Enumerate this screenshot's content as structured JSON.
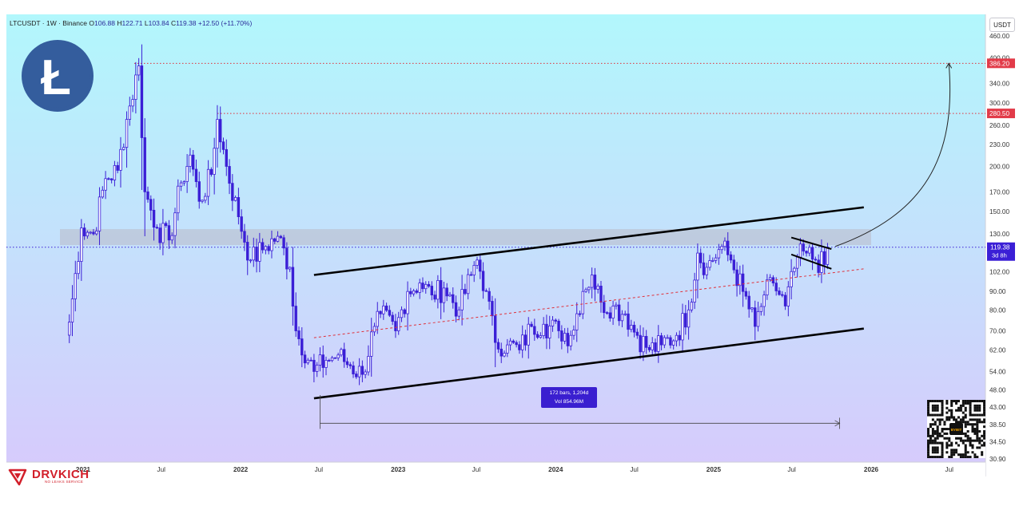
{
  "legend": {
    "symbol": "LTCUSDT · 1W · Binance",
    "open_label": "O",
    "open": "106.88",
    "high_label": "H",
    "high": "122.71",
    "low_label": "L",
    "low": "103.84",
    "close_label": "C",
    "close": "119.38",
    "change": "+12.50 (+11.70%)"
  },
  "logo": {
    "glyph": "Ł",
    "name": "litecoin-logo"
  },
  "price_axis": {
    "unit": "USDT",
    "ticks": [
      "460.00",
      "400.00",
      "340.00",
      "300.00",
      "260.00",
      "230.00",
      "200.00",
      "170.00",
      "150.00",
      "130.00",
      "102.00",
      "90.00",
      "80.00",
      "70.00",
      "62.00",
      "54.00",
      "48.00",
      "43.00",
      "38.50",
      "34.50",
      "30.90"
    ]
  },
  "price_labels": {
    "target_1": "386.20",
    "target_2": "280.50",
    "current_price": "119.38",
    "countdown": "3d 8h"
  },
  "time_axis": {
    "labels": [
      "2021",
      "Jul",
      "2022",
      "Jul",
      "2023",
      "Jul",
      "2024",
      "Jul",
      "2025",
      "Jul",
      "2026",
      "Jul"
    ]
  },
  "measure": {
    "bars": "172 bars, 1,204d",
    "vol": "Vol 854.96M"
  },
  "watermark": {
    "name": "DRVKICH",
    "tagline": "NO LEAKS SERVICE"
  },
  "qr": {
    "center_text": "BYBIT"
  },
  "colors": {
    "background_top": "#b2f7fc",
    "background_bottom": "#d6cbfc",
    "candle": "#3b1fd6",
    "trendline": "#000000",
    "midline": "#e0303a",
    "resistance_zone": "#b9b9c7",
    "target_label_bg": "#e23b49",
    "current_price_bg": "#3b1fd6"
  },
  "chart_data": {
    "type": "candlestick",
    "symbol": "LTCUSDT",
    "interval": "1W",
    "exchange": "Binance",
    "scale": "log",
    "ylim": [
      30.9,
      460
    ],
    "x_range": [
      "2020-11-30",
      "2026-09-30"
    ],
    "last_candle": {
      "open": 106.88,
      "high": 122.71,
      "low": 103.84,
      "close": 119.38,
      "change": 12.5,
      "change_pct": 11.7
    },
    "horizontal_levels": [
      {
        "price": 386.2,
        "style": "dotted",
        "color": "#e0303a"
      },
      {
        "price": 280.5,
        "style": "dotted",
        "color": "#e0303a"
      },
      {
        "price": 119.38,
        "style": "dotted",
        "color": "#3b1fd6"
      }
    ],
    "resistance_zone": [
      121,
      134
    ],
    "channel_upper": [
      [
        "2022-06-20",
        100
      ],
      [
        "2025-12-15",
        154
      ]
    ],
    "channel_lower": [
      [
        "2022-06-20",
        45.5
      ],
      [
        "2025-12-15",
        71
      ]
    ],
    "channel_mid": [
      [
        "2022-06-20",
        67
      ],
      [
        "2025-12-15",
        104
      ]
    ],
    "pennant_upper": [
      [
        "2025-06-30",
        127
      ],
      [
        "2025-10-01",
        118
      ]
    ],
    "pennant_lower": [
      [
        "2025-06-30",
        114
      ],
      [
        "2025-10-01",
        104
      ]
    ],
    "projection": [
      [
        "2025-10-10",
        120
      ],
      [
        "2026-06-30",
        386.2
      ]
    ],
    "measure_range": [
      [
        "2022-07-04",
        38.8
      ],
      [
        "2025-10-20",
        38.8
      ]
    ],
    "weekly_close_anchors": [
      [
        "2020-11-30",
        74
      ],
      [
        "2020-12-28",
        135
      ],
      [
        "2021-01-25",
        130
      ],
      [
        "2021-02-22",
        185
      ],
      [
        "2021-03-22",
        195
      ],
      [
        "2021-04-12",
        270
      ],
      [
        "2021-05-10",
        380
      ],
      [
        "2021-05-24",
        170
      ],
      [
        "2021-06-21",
        135
      ],
      [
        "2021-07-19",
        125
      ],
      [
        "2021-08-16",
        180
      ],
      [
        "2021-09-06",
        215
      ],
      [
        "2021-09-27",
        160
      ],
      [
        "2021-10-25",
        190
      ],
      [
        "2021-11-08",
        270
      ],
      [
        "2021-11-29",
        200
      ],
      [
        "2021-12-27",
        145
      ],
      [
        "2022-01-24",
        110
      ],
      [
        "2022-02-28",
        120
      ],
      [
        "2022-03-28",
        128
      ],
      [
        "2022-04-25",
        105
      ],
      [
        "2022-05-09",
        70
      ],
      [
        "2022-06-20",
        54
      ],
      [
        "2022-07-18",
        58
      ],
      [
        "2022-08-15",
        60
      ],
      [
        "2022-09-12",
        56
      ],
      [
        "2022-10-10",
        53
      ],
      [
        "2022-11-07",
        72
      ],
      [
        "2022-11-21",
        78
      ],
      [
        "2022-12-26",
        70
      ],
      [
        "2023-01-23",
        90
      ],
      [
        "2023-02-20",
        95
      ],
      [
        "2023-03-20",
        88
      ],
      [
        "2023-04-17",
        92
      ],
      [
        "2023-05-22",
        80
      ],
      [
        "2023-06-19",
        100
      ],
      [
        "2023-07-03",
        110
      ],
      [
        "2023-07-24",
        90
      ],
      [
        "2023-08-14",
        65
      ],
      [
        "2023-09-11",
        64
      ],
      [
        "2023-10-09",
        62
      ],
      [
        "2023-11-06",
        72
      ],
      [
        "2023-12-04",
        73
      ],
      [
        "2024-01-08",
        70
      ],
      [
        "2024-02-05",
        68
      ],
      [
        "2024-03-04",
        90
      ],
      [
        "2024-03-25",
        100
      ],
      [
        "2024-04-15",
        84
      ],
      [
        "2024-05-13",
        82
      ],
      [
        "2024-06-10",
        78
      ],
      [
        "2024-07-08",
        68
      ],
      [
        "2024-08-05",
        62
      ],
      [
        "2024-09-02",
        64
      ],
      [
        "2024-10-07",
        68
      ],
      [
        "2024-11-04",
        80
      ],
      [
        "2024-11-25",
        115
      ],
      [
        "2024-12-16",
        105
      ],
      [
        "2025-01-20",
        120
      ],
      [
        "2025-02-10",
        110
      ],
      [
        "2025-03-10",
        90
      ],
      [
        "2025-04-07",
        72
      ],
      [
        "2025-04-28",
        88
      ],
      [
        "2025-05-19",
        95
      ],
      [
        "2025-06-16",
        82
      ],
      [
        "2025-07-14",
        112
      ],
      [
        "2025-08-04",
        115
      ],
      [
        "2025-08-25",
        110
      ],
      [
        "2025-09-15",
        106.88
      ],
      [
        "2025-09-22",
        119.38
      ]
    ]
  }
}
